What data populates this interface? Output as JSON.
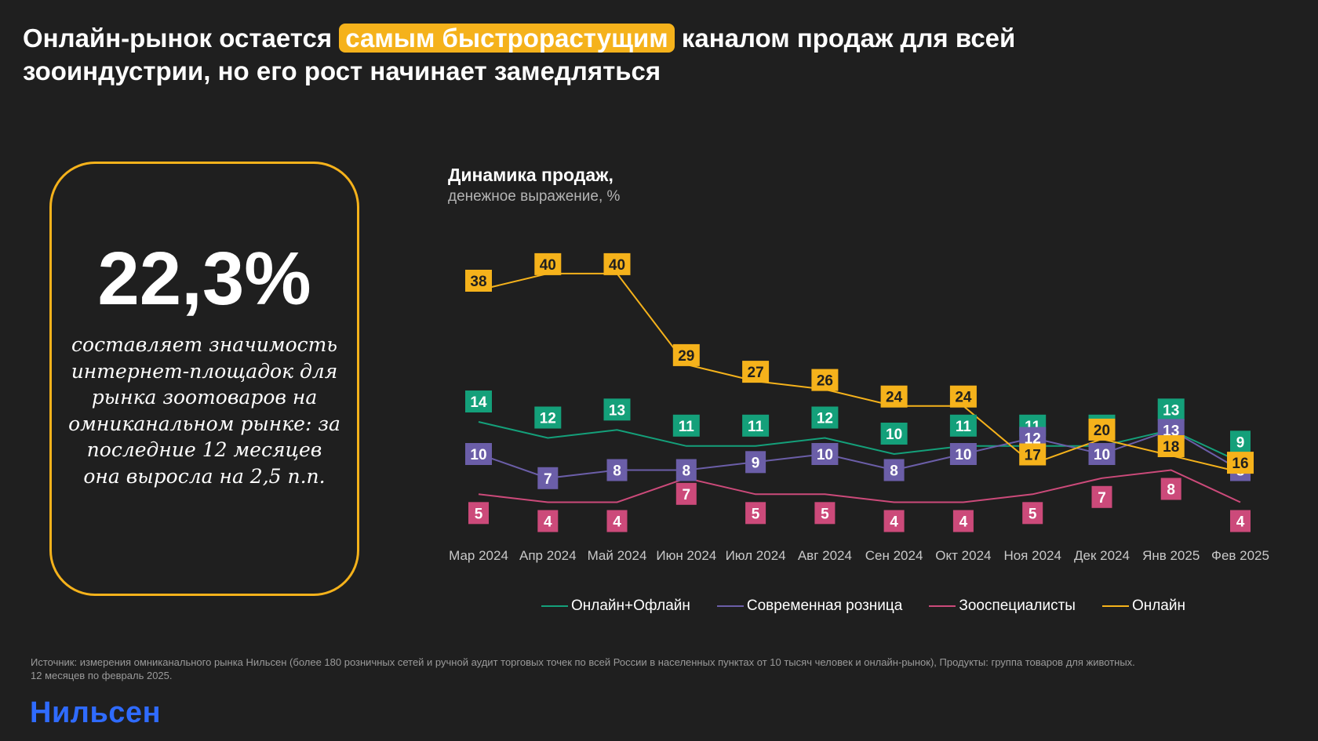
{
  "headline": {
    "before": "Онлайн-рынок остается ",
    "highlight": "самым быстрорастущим",
    "after": " каналом продаж для всей зооиндустрии, но его рост начинает замедляться"
  },
  "kpi": {
    "value": "22,3%",
    "text": "составляет значимость интернет-площадок для рынка зоотоваров на омниканальном рынке: за последние 12 месяцев она выросла на 2,5 п.п."
  },
  "chart_data": {
    "type": "line",
    "title": "Динамика продаж,",
    "subtitle": "денежное выражение, %",
    "categories": [
      "Мар 2024",
      "Апр 2024",
      "Май 2024",
      "Июн 2024",
      "Июл 2024",
      "Авг 2024",
      "Сен 2024",
      "Окт 2024",
      "Ноя 2024",
      "Дек 2024",
      "Янв 2025",
      "Фев 2025"
    ],
    "series": [
      {
        "name": "Онлайн+Офлайн",
        "color": "#14a07a",
        "values": [
          14,
          12,
          13,
          11,
          11,
          12,
          10,
          11,
          11,
          11,
          13,
          9
        ]
      },
      {
        "name": "Современная розница",
        "color": "#6b5ea8",
        "values": [
          10,
          7,
          8,
          8,
          9,
          10,
          8,
          10,
          12,
          10,
          13,
          8
        ]
      },
      {
        "name": "Зооспециалисты",
        "color": "#cc4a7a",
        "values": [
          5,
          4,
          4,
          7,
          5,
          5,
          4,
          4,
          5,
          7,
          8,
          4
        ]
      },
      {
        "name": "Онлайн",
        "color": "#f5b21b",
        "values": [
          38,
          40,
          40,
          29,
          27,
          26,
          24,
          24,
          17,
          20,
          18,
          16
        ]
      }
    ],
    "legend_position": "bottom",
    "grid": false
  },
  "source": {
    "line1": "Источник: измерения омниканального рынка Нильсен (более 180 розничных сетей и ручной аудит торговых точек по всей России в населенных пунктах от 10 тысяч человек и онлайн-рынок), Продукты: группа товаров для животных.",
    "line2": "12 месяцев по февраль 2025."
  },
  "brand": {
    "logo_text": "Нильсен",
    "color": "#2f6bff"
  },
  "colors": {
    "accent": "#f5b21b",
    "background": "#1f1f1f"
  }
}
